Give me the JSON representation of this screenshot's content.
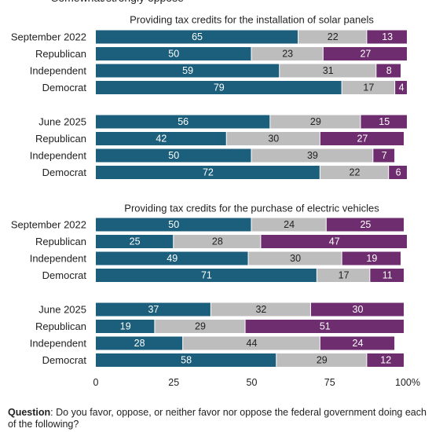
{
  "legend": {
    "items": [
      {
        "label": "Somewhat/strongly oppose",
        "color": "#6e2d6e"
      }
    ]
  },
  "colors": {
    "favor": "#1b5f7c",
    "neither": "#bdbdbd",
    "oppose": "#6e2d6e"
  },
  "footer": {
    "question_label": "Question",
    "question_text": ": Do you favor, oppose, or neither favor nor oppose the federal government doing each of the following?"
  },
  "chart_data": {
    "type": "bar",
    "orientation": "horizontal",
    "stacked": true,
    "xlim": [
      0,
      100
    ],
    "xticks": [
      "0",
      "25",
      "50",
      "75",
      "100%"
    ],
    "grid": false,
    "series_order": [
      "favor",
      "neither",
      "oppose"
    ],
    "panels": [
      {
        "title": "Providing tax credits for the installation of solar panels",
        "groups": [
          {
            "rows": [
              {
                "label": "September 2022",
                "values": [
                  65,
                  22,
                  13
                ]
              },
              {
                "label": "Republican",
                "values": [
                  50,
                  23,
                  27
                ]
              },
              {
                "label": "Independent",
                "values": [
                  59,
                  31,
                  8
                ]
              },
              {
                "label": "Democrat",
                "values": [
                  79,
                  17,
                  4
                ]
              }
            ]
          },
          {
            "rows": [
              {
                "label": "June 2025",
                "values": [
                  56,
                  29,
                  15
                ]
              },
              {
                "label": "Republican",
                "values": [
                  42,
                  30,
                  27
                ]
              },
              {
                "label": "Independent",
                "values": [
                  50,
                  39,
                  7
                ]
              },
              {
                "label": "Democrat",
                "values": [
                  72,
                  22,
                  6
                ]
              }
            ]
          }
        ]
      },
      {
        "title": "Providing tax credits for the purchase of electric vehicles",
        "groups": [
          {
            "rows": [
              {
                "label": "September 2022",
                "values": [
                  50,
                  24,
                  25
                ]
              },
              {
                "label": "Republican",
                "values": [
                  25,
                  28,
                  47
                ]
              },
              {
                "label": "Independent",
                "values": [
                  49,
                  30,
                  19
                ]
              },
              {
                "label": "Democrat",
                "values": [
                  71,
                  17,
                  11
                ]
              }
            ]
          },
          {
            "rows": [
              {
                "label": "June 2025",
                "values": [
                  37,
                  32,
                  30
                ]
              },
              {
                "label": "Republican",
                "values": [
                  19,
                  29,
                  51
                ]
              },
              {
                "label": "Independent",
                "values": [
                  28,
                  44,
                  24
                ]
              },
              {
                "label": "Democrat",
                "values": [
                  58,
                  29,
                  12
                ]
              }
            ]
          }
        ]
      }
    ]
  }
}
